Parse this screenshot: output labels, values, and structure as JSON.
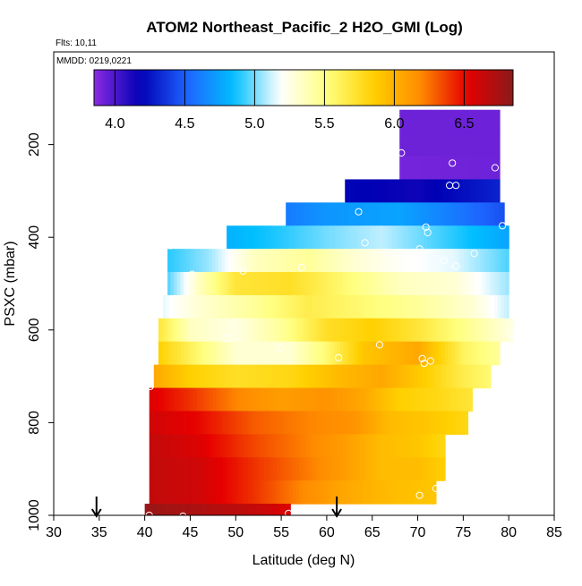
{
  "chart_data": {
    "type": "heatmap",
    "title": "ATOM2 Northeast_Pacific_2 H2O_GMI (Log)",
    "flights_text": "Flts: 10,11",
    "dates_text": "MMDD: 0219,0221",
    "xlabel": "Latitude (deg N)",
    "ylabel": "PSXC (mbar)",
    "xlim": [
      30,
      85
    ],
    "ylim": [
      1000,
      0
    ],
    "x_ticks": [
      "30",
      "35",
      "40",
      "45",
      "50",
      "55",
      "60",
      "65",
      "70",
      "75",
      "80",
      "85"
    ],
    "y_ticks": [
      "200",
      "400",
      "600",
      "800",
      "1000"
    ],
    "colorbar": {
      "range": [
        3.85,
        6.85
      ],
      "ticks": [
        "4.0",
        "4.5",
        "5.0",
        "5.5",
        "6.0",
        "6.5"
      ],
      "tick_values": [
        4.0,
        4.5,
        5.0,
        5.5,
        6.0,
        6.5
      ],
      "stops": [
        "#8a2be2",
        "#0000b4",
        "#1e64ff",
        "#00bfff",
        "#ffffff",
        "#ffff80",
        "#ffd000",
        "#ff8c00",
        "#e60000",
        "#8b1a1a"
      ]
    },
    "bands": [
      {
        "p_top": 125,
        "p_bot": 175,
        "lat_start": 68.0,
        "lat_end": 79.0,
        "knots": [
          [
            68.0,
            3.92
          ],
          [
            79.0,
            3.92
          ]
        ]
      },
      {
        "p_top": 175,
        "p_bot": 225,
        "lat_start": 68.0,
        "lat_end": 79.0,
        "knots": [
          [
            68.0,
            3.92
          ],
          [
            79.0,
            3.92
          ]
        ]
      },
      {
        "p_top": 225,
        "p_bot": 275,
        "lat_start": 68.0,
        "lat_end": 79.0,
        "knots": [
          [
            68.0,
            3.9
          ],
          [
            79.0,
            3.92
          ]
        ]
      },
      {
        "p_top": 275,
        "p_bot": 325,
        "lat_start": 62.0,
        "lat_end": 79.0,
        "knots": [
          [
            62.0,
            4.2
          ],
          [
            70.0,
            4.15
          ],
          [
            79.0,
            4.3
          ]
        ]
      },
      {
        "p_top": 325,
        "p_bot": 375,
        "lat_start": 55.5,
        "lat_end": 79.5,
        "knots": [
          [
            55.5,
            4.6
          ],
          [
            60.0,
            4.7
          ],
          [
            68.0,
            4.75
          ],
          [
            74.0,
            4.6
          ],
          [
            79.5,
            4.45
          ]
        ]
      },
      {
        "p_top": 375,
        "p_bot": 425,
        "lat_start": 49.0,
        "lat_end": 80.0,
        "knots": [
          [
            49.0,
            4.8
          ],
          [
            55.0,
            4.9
          ],
          [
            60.0,
            5.0
          ],
          [
            66.0,
            5.1
          ],
          [
            72.0,
            4.95
          ],
          [
            76.0,
            4.85
          ],
          [
            80.0,
            4.75
          ]
        ]
      },
      {
        "p_top": 425,
        "p_bot": 475,
        "lat_start": 42.5,
        "lat_end": 80.0,
        "knots": [
          [
            42.5,
            4.9
          ],
          [
            47.0,
            5.05
          ],
          [
            52.0,
            5.35
          ],
          [
            58.0,
            5.45
          ],
          [
            63.0,
            5.3
          ],
          [
            68.0,
            5.2
          ],
          [
            74.0,
            5.15
          ],
          [
            80.0,
            4.95
          ]
        ]
      },
      {
        "p_top": 475,
        "p_bot": 525,
        "lat_start": 42.5,
        "lat_end": 80.0,
        "knots": [
          [
            42.5,
            4.95
          ],
          [
            46.0,
            5.35
          ],
          [
            50.0,
            5.7
          ],
          [
            56.0,
            5.75
          ],
          [
            62.0,
            5.55
          ],
          [
            68.0,
            5.35
          ],
          [
            74.0,
            5.3
          ],
          [
            80.0,
            5.05
          ]
        ]
      },
      {
        "p_top": 525,
        "p_bot": 575,
        "lat_start": 42.0,
        "lat_end": 80.0,
        "knots": [
          [
            42.0,
            5.15
          ],
          [
            46.0,
            5.3
          ],
          [
            52.0,
            5.45
          ],
          [
            58.0,
            5.65
          ],
          [
            64.0,
            5.55
          ],
          [
            70.0,
            5.45
          ],
          [
            76.0,
            5.3
          ],
          [
            80.0,
            5.1
          ]
        ]
      },
      {
        "p_top": 575,
        "p_bot": 625,
        "lat_start": 41.5,
        "lat_end": 80.5,
        "knots": [
          [
            41.5,
            5.7
          ],
          [
            45.0,
            5.35
          ],
          [
            50.0,
            5.25
          ],
          [
            55.0,
            5.45
          ],
          [
            60.0,
            5.75
          ],
          [
            65.0,
            5.85
          ],
          [
            70.0,
            5.7
          ],
          [
            76.0,
            5.45
          ],
          [
            80.5,
            5.25
          ]
        ]
      },
      {
        "p_top": 625,
        "p_bot": 675,
        "lat_start": 41.5,
        "lat_end": 79.0,
        "knots": [
          [
            41.5,
            5.85
          ],
          [
            46.0,
            5.55
          ],
          [
            50.0,
            5.3
          ],
          [
            56.0,
            5.3
          ],
          [
            60.0,
            5.55
          ],
          [
            64.0,
            5.9
          ],
          [
            70.0,
            6.05
          ],
          [
            75.0,
            5.6
          ],
          [
            79.0,
            5.45
          ]
        ]
      },
      {
        "p_top": 675,
        "p_bot": 725,
        "lat_start": 41.0,
        "lat_end": 78.0,
        "knots": [
          [
            41.0,
            6.05
          ],
          [
            45.0,
            5.85
          ],
          [
            50.0,
            5.75
          ],
          [
            56.0,
            5.8
          ],
          [
            61.0,
            5.95
          ],
          [
            66.0,
            6.05
          ],
          [
            71.0,
            5.85
          ],
          [
            75.0,
            5.65
          ],
          [
            78.0,
            5.55
          ]
        ]
      },
      {
        "p_top": 725,
        "p_bot": 775,
        "lat_start": 40.5,
        "lat_end": 76.0,
        "knots": [
          [
            40.5,
            6.55
          ],
          [
            45.0,
            6.4
          ],
          [
            50.0,
            6.2
          ],
          [
            55.0,
            6.1
          ],
          [
            60.0,
            6.15
          ],
          [
            64.0,
            6.05
          ],
          [
            68.0,
            5.85
          ],
          [
            72.0,
            5.8
          ],
          [
            76.0,
            5.7
          ]
        ]
      },
      {
        "p_top": 775,
        "p_bot": 825,
        "lat_start": 40.5,
        "lat_end": 75.5,
        "knots": [
          [
            40.5,
            6.6
          ],
          [
            46.0,
            6.5
          ],
          [
            52.0,
            6.3
          ],
          [
            58.0,
            6.2
          ],
          [
            63.0,
            6.15
          ],
          [
            67.0,
            5.95
          ],
          [
            71.0,
            5.9
          ],
          [
            75.5,
            5.8
          ]
        ]
      },
      {
        "p_top": 825,
        "p_bot": 875,
        "lat_start": 40.5,
        "lat_end": 73.0,
        "knots": [
          [
            40.5,
            6.65
          ],
          [
            46.0,
            6.55
          ],
          [
            52.0,
            6.35
          ],
          [
            58.0,
            6.2
          ],
          [
            62.0,
            6.1
          ],
          [
            66.0,
            5.95
          ],
          [
            70.0,
            5.9
          ],
          [
            73.0,
            5.8
          ]
        ]
      },
      {
        "p_top": 875,
        "p_bot": 925,
        "lat_start": 40.5,
        "lat_end": 73.0,
        "knots": [
          [
            40.5,
            6.65
          ],
          [
            46.0,
            6.6
          ],
          [
            52.0,
            6.4
          ],
          [
            57.0,
            6.25
          ],
          [
            62.0,
            6.1
          ],
          [
            66.0,
            5.95
          ],
          [
            70.0,
            5.95
          ],
          [
            73.0,
            5.85
          ]
        ]
      },
      {
        "p_top": 925,
        "p_bot": 975,
        "lat_start": 40.5,
        "lat_end": 72.0,
        "knots": [
          [
            40.5,
            6.65
          ],
          [
            46.0,
            6.6
          ],
          [
            52.0,
            6.4
          ],
          [
            57.0,
            6.2
          ],
          [
            62.0,
            6.05
          ],
          [
            67.0,
            5.95
          ],
          [
            72.0,
            5.9
          ]
        ]
      },
      {
        "p_top": 975,
        "p_bot": 1025,
        "lat_start": 40.0,
        "lat_end": 56.0,
        "knots": [
          [
            40.0,
            6.8
          ],
          [
            44.0,
            6.75
          ],
          [
            48.0,
            6.7
          ],
          [
            52.0,
            6.65
          ],
          [
            56.0,
            6.55
          ]
        ]
      }
    ],
    "points": [
      [
        68.2,
        218
      ],
      [
        73.8,
        240
      ],
      [
        78.5,
        250
      ],
      [
        73.5,
        288
      ],
      [
        74.2,
        288
      ],
      [
        63.5,
        345
      ],
      [
        70.9,
        378
      ],
      [
        71.1,
        390
      ],
      [
        79.3,
        375
      ],
      [
        42.8,
        418
      ],
      [
        64.2,
        412
      ],
      [
        66.5,
        432
      ],
      [
        70.2,
        425
      ],
      [
        76.2,
        435
      ],
      [
        72.9,
        450
      ],
      [
        74.2,
        462
      ],
      [
        57.2,
        465
      ],
      [
        50.8,
        473
      ],
      [
        45.2,
        480
      ],
      [
        49.0,
        618
      ],
      [
        54.9,
        638
      ],
      [
        65.8,
        632
      ],
      [
        80.2,
        608
      ],
      [
        61.3,
        660
      ],
      [
        70.5,
        662
      ],
      [
        70.7,
        672
      ],
      [
        71.4,
        667
      ],
      [
        40.6,
        722
      ],
      [
        72.0,
        942
      ],
      [
        70.2,
        957
      ],
      [
        40.5,
        1000
      ],
      [
        44.2,
        1002
      ],
      [
        55.8,
        996
      ]
    ],
    "arrows_lat": [
      34.7,
      61.1
    ]
  }
}
